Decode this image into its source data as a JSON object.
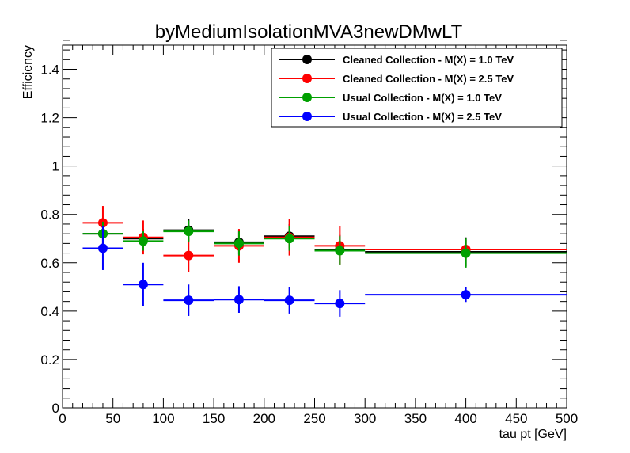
{
  "chart_data": {
    "type": "scatter",
    "title": "byMediumIsolationMVA3newDMwLT",
    "xlabel": "tau pt [GeV]",
    "ylabel": "Efficiency",
    "xlim": [
      0,
      500
    ],
    "ylim": [
      0,
      1.5
    ],
    "x_ticks": [
      "0",
      "50",
      "100",
      "150",
      "200",
      "250",
      "300",
      "350",
      "400",
      "450",
      "500"
    ],
    "y_ticks": [
      "0",
      "0.2",
      "0.4",
      "0.6",
      "0.8",
      "1",
      "1.2",
      "1.4"
    ],
    "grid": false,
    "legend_position": "top-right",
    "bins": [
      [
        20,
        60
      ],
      [
        60,
        100
      ],
      [
        100,
        150
      ],
      [
        150,
        200
      ],
      [
        200,
        250
      ],
      [
        250,
        300
      ],
      [
        300,
        500
      ]
    ],
    "series": [
      {
        "name": "Cleaned Collection - M(X) = 1.0 TeV",
        "color": "#000000",
        "x": [
          40,
          80,
          125,
          175,
          225,
          275,
          400
        ],
        "y": [
          0.72,
          0.7,
          0.735,
          0.685,
          0.71,
          0.655,
          0.645
        ],
        "yerr": [
          0.05,
          0.04,
          0.045,
          0.05,
          0.05,
          0.06,
          0.06
        ]
      },
      {
        "name": "Cleaned Collection - M(X) = 2.5 TeV",
        "color": "#ff0000",
        "x": [
          40,
          80,
          125,
          175,
          225,
          275,
          400
        ],
        "y": [
          0.765,
          0.705,
          0.63,
          0.67,
          0.705,
          0.67,
          0.655
        ],
        "yerr": [
          0.07,
          0.07,
          0.07,
          0.07,
          0.075,
          0.08,
          0.04
        ]
      },
      {
        "name": "Usual Collection - M(X) = 1.0 TeV",
        "color": "#00a000",
        "x": [
          40,
          80,
          125,
          175,
          225,
          275,
          400
        ],
        "y": [
          0.72,
          0.69,
          0.73,
          0.68,
          0.7,
          0.65,
          0.64
        ],
        "yerr": [
          0.05,
          0.04,
          0.045,
          0.05,
          0.05,
          0.06,
          0.06
        ]
      },
      {
        "name": "Usual Collection - M(X) = 2.5 TeV",
        "color": "#0000ff",
        "x": [
          40,
          80,
          125,
          175,
          225,
          275,
          400
        ],
        "y": [
          0.66,
          0.51,
          0.445,
          0.448,
          0.445,
          0.432,
          0.468
        ],
        "yerr": [
          0.09,
          0.09,
          0.065,
          0.055,
          0.055,
          0.055,
          0.03
        ]
      }
    ]
  }
}
